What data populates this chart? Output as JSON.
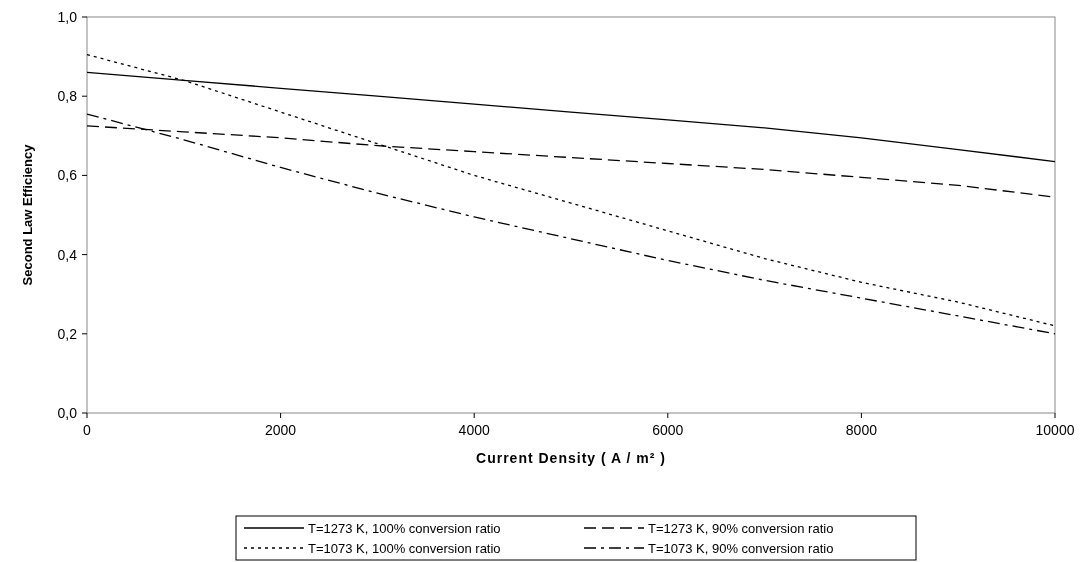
{
  "chart_data": {
    "type": "line",
    "xlabel": "Current Density ( A / m² )",
    "ylabel": "Second Law Efficiency",
    "x": [
      0,
      1000,
      2000,
      3000,
      4000,
      5000,
      6000,
      7000,
      8000,
      9000,
      10000
    ],
    "xlim": [
      0,
      10000
    ],
    "xticks": [
      0,
      2000,
      4000,
      6000,
      8000,
      10000
    ],
    "ylim": [
      0,
      1
    ],
    "yticks": [
      {
        "value": 0,
        "label": "0,0"
      },
      {
        "value": 0.2,
        "label": "0,2"
      },
      {
        "value": 0.4,
        "label": "0,4"
      },
      {
        "value": 0.6,
        "label": "0,6"
      },
      {
        "value": 0.8,
        "label": "0,8"
      },
      {
        "value": 1,
        "label": "1,0"
      }
    ],
    "grid": false,
    "legend": "bottom",
    "marker": "none",
    "series": [
      {
        "name": "T=1273 K, 100% conversion ratio",
        "color": "#000000",
        "line_style": "solid",
        "values": [
          0.86,
          0.84,
          0.82,
          0.8,
          0.78,
          0.76,
          0.74,
          0.72,
          0.695,
          0.665,
          0.635
        ]
      },
      {
        "name": "T=1273 K, 90% conversion ratio",
        "color": "#000000",
        "line_style": "dashed",
        "values": [
          0.725,
          0.71,
          0.695,
          0.675,
          0.66,
          0.645,
          0.63,
          0.615,
          0.595,
          0.575,
          0.545
        ]
      },
      {
        "name": "T=1073 K, 100% conversion ratio",
        "color": "#000000",
        "line_style": "dotted",
        "values": [
          0.905,
          0.84,
          0.76,
          0.68,
          0.6,
          0.53,
          0.46,
          0.39,
          0.33,
          0.28,
          0.22
        ]
      },
      {
        "name": "T=1073 K, 90% conversion ratio",
        "color": "#000000",
        "line_style": "dashdot",
        "values": [
          0.755,
          0.69,
          0.62,
          0.555,
          0.495,
          0.44,
          0.385,
          0.335,
          0.29,
          0.245,
          0.2
        ]
      }
    ]
  }
}
